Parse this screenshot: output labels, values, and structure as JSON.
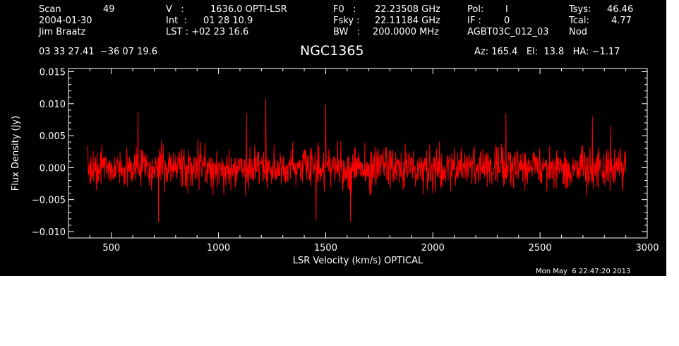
{
  "header": {
    "scan_label": "Scan",
    "scan_value": "49",
    "date": "2004-01-30",
    "observer": "Jim Braatz",
    "v_label": "V   :",
    "v_value": "1636.0 OPTI-LSR",
    "int_label": "Int  :",
    "int_value": "01 28 10.9",
    "lst_label": "LST : +02 23 16.6",
    "f0_label": "F0   :",
    "f0_value": "22.23508 GHz",
    "fsky_label": "Fsky :",
    "fsky_value": "22.11184 GHz",
    "bw_label": "BW   :",
    "bw_value": "200.0000 MHz",
    "pol_label": "Pol:",
    "pol_value": "I",
    "if_label": "IF :",
    "if_value": "0",
    "project": "AGBT03C_012_03",
    "tsys_label": "Tsys:",
    "tsys_value": "46.46",
    "tcal_label": "Tcal:",
    "tcal_value": "4.77",
    "mode": "Nod",
    "coords": "03 33 27.41  −36 07 19.6",
    "source": "NGC1365",
    "azelha": "Az: 165.4   El:  13.8   HA: −1.17",
    "timestamp": "Mon May  6 22:47:20 2013"
  },
  "chart_data": {
    "type": "line",
    "title": "NGC1365",
    "xlabel": "LSR Velocity (km/s) OPTICAL",
    "ylabel": "Flux Density (Jy)",
    "xlim": [
      300,
      3000
    ],
    "ylim": [
      -0.011,
      0.0155
    ],
    "xticks": [
      500,
      1000,
      1500,
      2000,
      2500,
      3000
    ],
    "xtick_labels": [
      "500",
      "1000",
      "1500",
      "2000",
      "2500",
      "3000"
    ],
    "yticks": [
      -0.01,
      -0.005,
      0.0,
      0.005,
      0.01,
      0.015
    ],
    "ytick_labels": [
      "−0.010",
      "−0.005",
      "0.000",
      "0.005",
      "0.010",
      "0.015"
    ],
    "series": [
      {
        "color": "#ff0000",
        "x_start": 390,
        "x_end": 2900,
        "n_points": 1500,
        "noise_rms": 0.0022,
        "spikes": [
          {
            "x": 625,
            "y": 0.0088
          },
          {
            "x": 720,
            "y": -0.0085
          },
          {
            "x": 1130,
            "y": 0.0085
          },
          {
            "x": 1220,
            "y": 0.0108
          },
          {
            "x": 1500,
            "y": 0.0098
          },
          {
            "x": 1455,
            "y": -0.0082
          },
          {
            "x": 1615,
            "y": -0.0085
          },
          {
            "x": 2340,
            "y": 0.0085
          },
          {
            "x": 2745,
            "y": 0.008
          },
          {
            "x": 2830,
            "y": 0.0065
          }
        ]
      }
    ]
  }
}
